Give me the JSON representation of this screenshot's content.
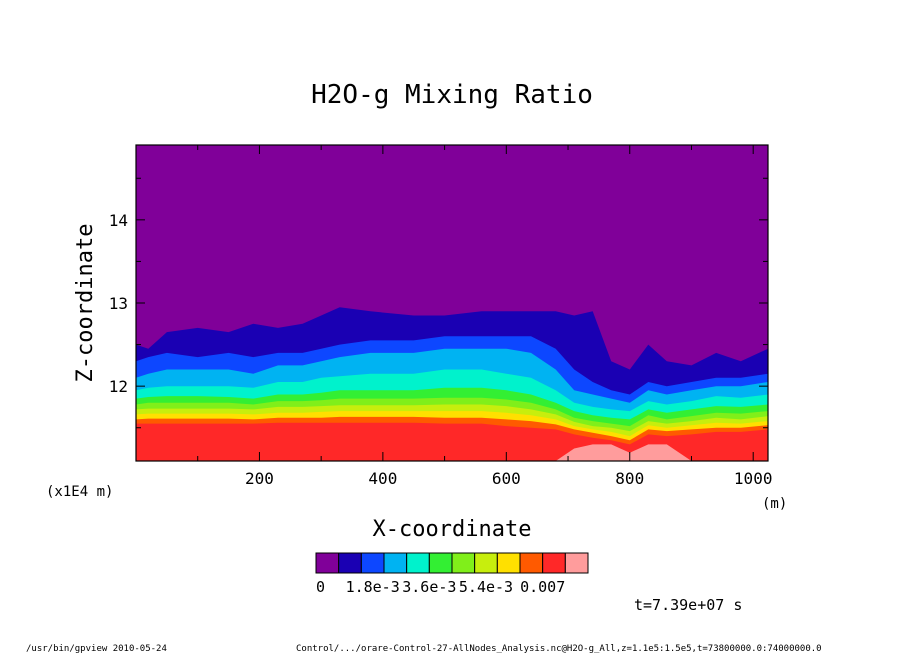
{
  "chart_data": {
    "type": "heatmap",
    "title": "H2O-g Mixing Ratio",
    "xlabel": "X-coordinate",
    "ylabel": "Z-coordinate",
    "x_unit_left": "(x1E4 m)",
    "x_unit_right": "(m)",
    "xlim": [
      0,
      1024
    ],
    "ylim": [
      11.1,
      14.9
    ],
    "x_ticks": [
      200,
      400,
      600,
      800,
      1000
    ],
    "y_ticks": [
      12,
      13,
      14
    ],
    "colorbar": {
      "levels": [
        0,
        0.0007,
        0.0012,
        0.0018,
        0.0024,
        0.003,
        0.0036,
        0.0042,
        0.0048,
        0.0054,
        0.006,
        0.0066,
        0.007
      ],
      "colors": [
        "#800099",
        "#1a00b3",
        "#0d47ff",
        "#00b3f2",
        "#00f2cc",
        "#33ef33",
        "#80ef1a",
        "#c7ee0d",
        "#ffe000",
        "#ff5a00",
        "#ff2828",
        "#ff9c9c"
      ],
      "labels": [
        "0",
        "1.8e-3",
        "3.6e-3",
        "5.4e-3",
        "0.007"
      ]
    },
    "profiles": {
      "x": [
        0,
        20,
        50,
        100,
        150,
        190,
        230,
        270,
        300,
        330,
        380,
        450,
        500,
        560,
        600,
        640,
        680,
        710,
        740,
        770,
        800,
        830,
        860,
        900,
        940,
        980,
        1024
      ],
      "top_12": [
        12.5,
        12.45,
        12.65,
        12.7,
        12.65,
        12.75,
        12.7,
        12.75,
        12.85,
        12.95,
        12.9,
        12.85,
        12.85,
        12.9,
        12.9,
        12.9,
        12.9,
        12.85,
        12.9,
        12.3,
        12.2,
        12.5,
        12.3,
        12.25,
        12.4,
        12.3,
        12.45
      ],
      "b1": [
        12.3,
        12.35,
        12.4,
        12.35,
        12.4,
        12.35,
        12.4,
        12.4,
        12.45,
        12.5,
        12.55,
        12.55,
        12.6,
        12.6,
        12.6,
        12.6,
        12.45,
        12.2,
        12.05,
        11.95,
        11.9,
        12.05,
        12.0,
        12.05,
        12.1,
        12.1,
        12.15
      ],
      "b2": [
        12.1,
        12.15,
        12.2,
        12.2,
        12.2,
        12.15,
        12.25,
        12.25,
        12.3,
        12.35,
        12.4,
        12.4,
        12.45,
        12.45,
        12.45,
        12.4,
        12.2,
        11.95,
        11.9,
        11.85,
        11.8,
        11.95,
        11.9,
        11.95,
        12.0,
        12.0,
        12.05
      ],
      "b3": [
        11.95,
        11.98,
        12.0,
        12.0,
        12.0,
        11.98,
        12.05,
        12.05,
        12.1,
        12.12,
        12.15,
        12.15,
        12.2,
        12.2,
        12.15,
        12.1,
        11.95,
        11.8,
        11.75,
        11.72,
        11.7,
        11.82,
        11.78,
        11.82,
        11.88,
        11.86,
        11.9
      ],
      "b4": [
        11.85,
        11.87,
        11.88,
        11.88,
        11.87,
        11.85,
        11.9,
        11.9,
        11.92,
        11.95,
        11.95,
        11.95,
        11.98,
        11.98,
        11.95,
        11.9,
        11.8,
        11.7,
        11.65,
        11.62,
        11.6,
        11.72,
        11.68,
        11.72,
        11.76,
        11.75,
        11.78
      ],
      "b5": [
        11.78,
        11.8,
        11.8,
        11.8,
        11.8,
        11.78,
        11.82,
        11.82,
        11.83,
        11.85,
        11.85,
        11.85,
        11.86,
        11.86,
        11.84,
        11.8,
        11.72,
        11.62,
        11.58,
        11.55,
        11.52,
        11.65,
        11.6,
        11.64,
        11.68,
        11.67,
        11.7
      ],
      "b6": [
        11.72,
        11.73,
        11.73,
        11.73,
        11.73,
        11.72,
        11.75,
        11.75,
        11.76,
        11.77,
        11.77,
        11.77,
        11.78,
        11.78,
        11.76,
        11.72,
        11.66,
        11.57,
        11.52,
        11.5,
        11.46,
        11.58,
        11.55,
        11.58,
        11.62,
        11.6,
        11.64
      ],
      "b7": [
        11.66,
        11.67,
        11.67,
        11.67,
        11.67,
        11.66,
        11.68,
        11.68,
        11.69,
        11.7,
        11.7,
        11.7,
        11.7,
        11.7,
        11.68,
        11.65,
        11.6,
        11.52,
        11.48,
        11.45,
        11.4,
        11.53,
        11.5,
        11.53,
        11.56,
        11.55,
        11.58
      ],
      "b8": [
        11.6,
        11.61,
        11.61,
        11.61,
        11.61,
        11.6,
        11.62,
        11.62,
        11.62,
        11.63,
        11.63,
        11.63,
        11.62,
        11.62,
        11.6,
        11.58,
        11.54,
        11.48,
        11.44,
        11.4,
        11.35,
        11.48,
        11.46,
        11.48,
        11.5,
        11.5,
        11.53
      ],
      "b9": [
        11.55,
        11.55,
        11.55,
        11.55,
        11.55,
        11.55,
        11.56,
        11.56,
        11.56,
        11.56,
        11.56,
        11.56,
        11.55,
        11.55,
        11.52,
        11.5,
        11.48,
        11.42,
        11.38,
        11.35,
        11.3,
        11.42,
        11.4,
        11.42,
        11.45,
        11.45,
        11.48
      ],
      "b10": [
        11.1,
        11.1,
        11.1,
        11.1,
        11.1,
        11.1,
        11.1,
        11.1,
        11.1,
        11.1,
        11.1,
        11.1,
        11.1,
        11.1,
        11.1,
        11.1,
        11.1,
        11.25,
        11.3,
        11.3,
        11.2,
        11.3,
        11.3,
        11.1,
        11.1,
        11.1,
        11.1
      ]
    }
  },
  "time_label": "t=7.39e+07 s",
  "footer_left": "/usr/bin/gpview  2010-05-24",
  "footer_right": "Control/.../orare-Control-27-AllNodes_Analysis.nc@H2O-g_All,z=1.1e5:1.5e5,t=73800000.0:74000000.0"
}
